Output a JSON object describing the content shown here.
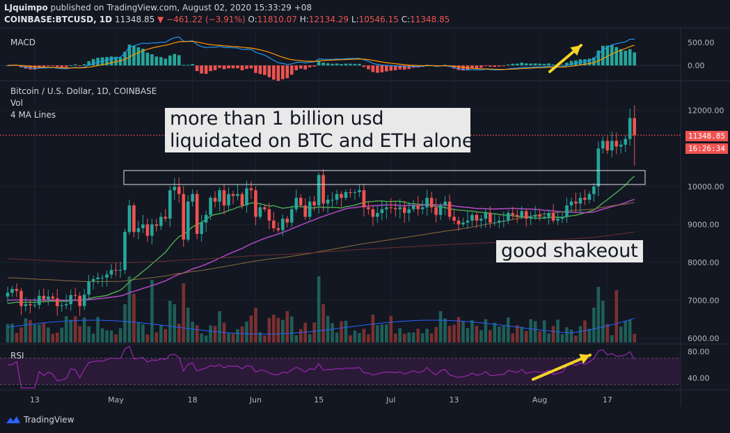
{
  "header": {
    "author": "LJquimpo",
    "published": "published on TradingView.com, August 02, 2020 15:33:29 +08",
    "symbol": "COINBASE:BTCUSD, 1D",
    "last": "11348.85",
    "change": "−461.22 (−3.91%)",
    "o_label": "O:",
    "o": "11810.07",
    "h_label": "H:",
    "h": "12134.29",
    "l_label": "L:",
    "l": "10546.15",
    "c_label": "C:",
    "c": "11348.85"
  },
  "pane_labels": {
    "macd": "MACD",
    "main_title": "Bitcoin / U.S. Dollar, 1D, COINBASE",
    "vol": "Vol",
    "ma": "4 MA Lines",
    "rsi": "RSI"
  },
  "annotations": {
    "note1_line1": "more than 1 billion usd",
    "note1_line2": "liquidated on BTC and ETH alone",
    "note2": "good shakeout"
  },
  "price_tags": {
    "last_price": "11348.85",
    "countdown": "16:26:34"
  },
  "footer": {
    "brand": "TradingView"
  },
  "colors": {
    "bg": "#131722",
    "up": "#26a69a",
    "down": "#ef5350",
    "ma20": "#4caf50",
    "ma50": "#ab47bc",
    "ma100": "#8d6e3c",
    "ma200": "#6d2f2f",
    "macd": "#2196f3",
    "signal": "#ff9800",
    "rsi": "#9c27b0",
    "arrow": "#f5d327"
  },
  "chart_data": [
    {
      "type": "candlestick",
      "title": "Bitcoin / U.S. Dollar, 1D, COINBASE",
      "x_start": "2020-04-07",
      "x_end": "2020-08-02",
      "x_ticks": [
        "13",
        "May",
        "18",
        "Jun",
        "15",
        "Jul",
        "13",
        "Aug",
        "17"
      ],
      "y_ticks": [
        "6000.00",
        "7000.00",
        "8000.00",
        "9000.00",
        "10000.00",
        "12000.00"
      ],
      "ylim": [
        5950,
        12450
      ],
      "close": [
        7200,
        7300,
        7250,
        6850,
        6900,
        6870,
        6880,
        7120,
        7030,
        7100,
        7050,
        6850,
        6870,
        6900,
        7140,
        7120,
        6850,
        7150,
        7500,
        7560,
        7600,
        7600,
        7680,
        7800,
        7780,
        7800,
        8800,
        9500,
        8800,
        8900,
        9000,
        8700,
        9000,
        8960,
        9200,
        9150,
        9900,
        9990,
        9800,
        8600,
        9600,
        9800,
        8750,
        9050,
        9250,
        9700,
        9600,
        9900,
        9500,
        9800,
        9750,
        9800,
        9500,
        9950,
        9900,
        9200,
        9450,
        9400,
        9100,
        8900,
        8850,
        9150,
        9050,
        9400,
        9700,
        9500,
        9200,
        9600,
        9500,
        10300,
        9550,
        9650,
        9650,
        9800,
        9700,
        9850,
        9830,
        9850,
        9900,
        9450,
        9400,
        9200,
        9300,
        9400,
        9450,
        9430,
        9400,
        9450,
        9300,
        9400,
        9500,
        9400,
        9450,
        9700,
        9450,
        9250,
        9500,
        9600,
        9200,
        9100,
        9000,
        9050,
        9100,
        9250,
        9100,
        9150,
        9300,
        9050,
        9050,
        9100,
        9100,
        9300,
        9250,
        9200,
        9350,
        9150,
        9200,
        9250,
        9200,
        9200,
        9300,
        9100,
        9150,
        9200,
        9500,
        9600,
        9550,
        9700,
        9650,
        9800,
        10000,
        11000,
        11200,
        10950,
        11200,
        11050,
        11100,
        11250,
        11800,
        11348
      ]
    },
    {
      "type": "line",
      "name": "MACD",
      "y_ticks": [
        "500.00",
        "0.00"
      ],
      "ylim": [
        -150,
        700
      ]
    },
    {
      "type": "line",
      "name": "RSI",
      "y_ticks": [
        "80.00",
        "40.00"
      ],
      "ylim": [
        20,
        95
      ]
    }
  ]
}
